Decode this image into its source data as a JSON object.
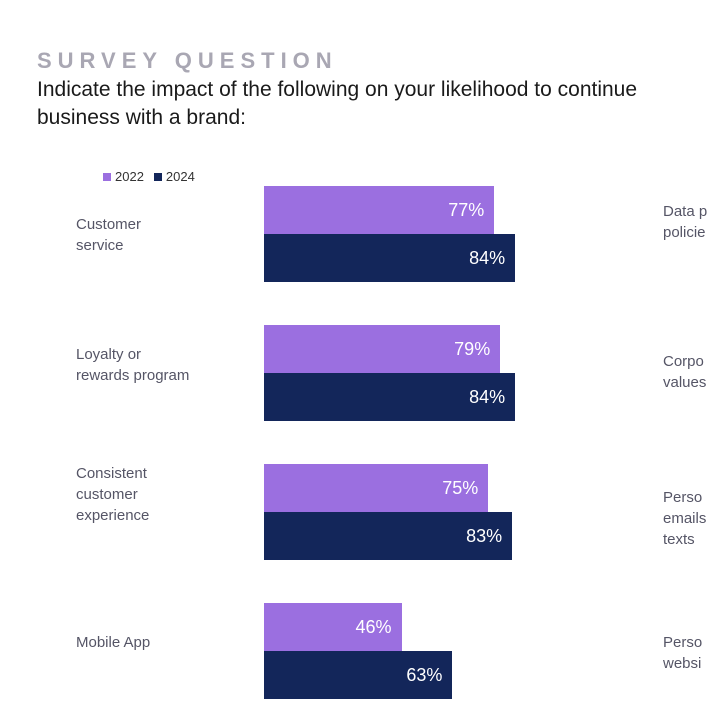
{
  "header": {
    "eyebrow": "SURVEY QUESTION",
    "question": "Indicate the impact of the following on your likelihood to continue\nbusiness with a brand:"
  },
  "colors": {
    "2022": "#9b6fe0",
    "2024": "#13265a"
  },
  "chart_data": {
    "type": "bar",
    "orientation": "horizontal",
    "categories": [
      "Customer\nservice",
      "Loyalty or\nrewards program",
      "Consistent\ncustomer\nexperience",
      "Mobile App"
    ],
    "series": [
      {
        "name": "2022",
        "values": [
          77,
          79,
          75,
          46
        ],
        "labels": [
          "77%",
          "79%",
          "75%",
          "46%"
        ]
      },
      {
        "name": "2024",
        "values": [
          84,
          84,
          83,
          63
        ],
        "labels": [
          "84%",
          "84%",
          "83%",
          "63%"
        ]
      }
    ],
    "xlim": [
      0,
      100
    ],
    "legend": "top-left",
    "grid": false
  },
  "right_column_partial": [
    "Data p\npolicie",
    "Corpo\nvalues",
    "Perso\nemails\ntexts",
    "Perso\nwebsi"
  ]
}
